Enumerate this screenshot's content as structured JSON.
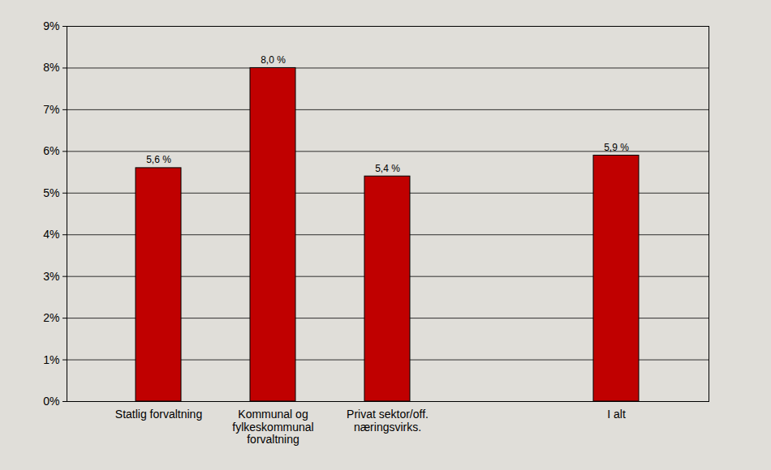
{
  "chart_data": {
    "type": "bar",
    "categories": [
      "Statlig forvaltning",
      "Kommunal og fylkeskommunal forvaltning",
      "Privat sektor/off. næringsvirks.",
      null,
      "I alt"
    ],
    "values": [
      5.6,
      8.0,
      5.4,
      null,
      5.9
    ],
    "value_labels": [
      "5,6 %",
      "8,0 %",
      "5,4 %",
      null,
      "5,9 %"
    ],
    "color": "#c00000",
    "ylim": [
      0,
      9
    ],
    "yticks": [
      {
        "value": 0,
        "label": "0%"
      },
      {
        "value": 1,
        "label": "1%"
      },
      {
        "value": 2,
        "label": "2%"
      },
      {
        "value": 3,
        "label": "3%"
      },
      {
        "value": 4,
        "label": "4%"
      },
      {
        "value": 5,
        "label": "5%"
      },
      {
        "value": 6,
        "label": "6%"
      },
      {
        "value": 7,
        "label": "7%"
      },
      {
        "value": 8,
        "label": "8%"
      },
      {
        "value": 9,
        "label": "9%"
      }
    ],
    "grid": true,
    "data_labels": true
  }
}
